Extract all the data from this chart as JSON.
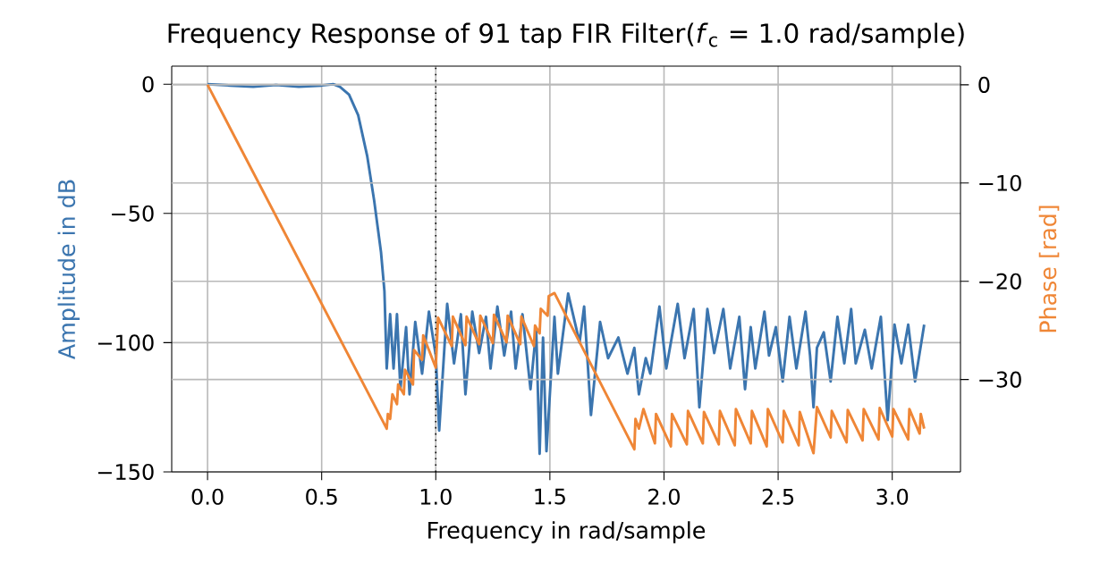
{
  "chart_data": {
    "type": "line",
    "title": "Frequency Response of 91 tap FIR Filter(*f*$_{c}$ = 1.0 rad/sample)",
    "xlabel": "Frequency in rad/sample",
    "ylabel": "Amplitude in dB",
    "y2label": "Phase [rad]",
    "xlim": [
      -0.157,
      3.299
    ],
    "ylim": [
      -150,
      7
    ],
    "y2lim": [
      -39.4,
      1.9
    ],
    "xticks": [
      {
        "value": 0,
        "label": "0.0"
      },
      {
        "value": 0.5,
        "label": "0.5"
      },
      {
        "value": 1.0,
        "label": "1.0"
      },
      {
        "value": 1.5,
        "label": "1.5"
      },
      {
        "value": 2.0,
        "label": "2.0"
      },
      {
        "value": 2.5,
        "label": "2.5"
      },
      {
        "value": 3.0,
        "label": "3.0"
      }
    ],
    "yticks": [
      {
        "value": 0,
        "label": "0"
      },
      {
        "value": -50,
        "label": "−50"
      },
      {
        "value": -100,
        "label": "−100"
      },
      {
        "value": -150,
        "label": "−150"
      }
    ],
    "y2ticks": [
      {
        "value": 0,
        "label": "0"
      },
      {
        "value": -10,
        "label": "−10"
      },
      {
        "value": -20,
        "label": "−20"
      },
      {
        "value": -30,
        "label": "−30"
      }
    ],
    "grid": true,
    "ref_lines": [
      {
        "axis": "x",
        "value": 1.0,
        "color": "#000000",
        "line_style": "dotted"
      }
    ],
    "series": [
      {
        "color": "#3b75af",
        "x": [
          0,
          0.1,
          0.2,
          0.3,
          0.4,
          0.5,
          0.55,
          0.58,
          0.62,
          0.66,
          0.7,
          0.73,
          0.76,
          0.775,
          0.785,
          0.8,
          0.815,
          0.83,
          0.845,
          0.87,
          0.885,
          0.91,
          0.94,
          0.97,
          1.0,
          1.015,
          1.05,
          1.08,
          1.11,
          1.13,
          1.16,
          1.19,
          1.22,
          1.24,
          1.27,
          1.3,
          1.33,
          1.35,
          1.38,
          1.415,
          1.44,
          1.455,
          1.47,
          1.485,
          1.52,
          1.535,
          1.58,
          1.63,
          1.65,
          1.68,
          1.72,
          1.755,
          1.8,
          1.84,
          1.87,
          1.89,
          1.92,
          1.94,
          1.98,
          2.01,
          2.06,
          2.09,
          2.13,
          2.155,
          2.19,
          2.22,
          2.26,
          2.29,
          2.33,
          2.355,
          2.38,
          2.4,
          2.44,
          2.46,
          2.49,
          2.52,
          2.55,
          2.58,
          2.62,
          2.64,
          2.655,
          2.67,
          2.7,
          2.73,
          2.76,
          2.79,
          2.82,
          2.84,
          2.88,
          2.91,
          2.95,
          2.98,
          3.01,
          3.04,
          3.07,
          3.1,
          3.14
        ],
        "values": [
          0,
          -0.5,
          -1,
          -0.3,
          -1,
          -0.5,
          0,
          -1,
          -4,
          -12,
          -28,
          -45,
          -65,
          -80,
          -110,
          -89,
          -110,
          -89,
          -118,
          -94,
          -120,
          -92,
          -112,
          -88,
          -105,
          -134,
          -85,
          -108,
          -89,
          -120,
          -88,
          -104,
          -90,
          -110,
          -86,
          -105,
          -88,
          -110,
          -89,
          -118,
          -95,
          -143,
          -98,
          -142,
          -90,
          -112,
          -81,
          -100,
          -86,
          -128,
          -92,
          -106,
          -98,
          -112,
          -102,
          -120,
          -106,
          -112,
          -86,
          -110,
          -85,
          -106,
          -87,
          -125,
          -87,
          -104,
          -87,
          -110,
          -90,
          -118,
          -94,
          -110,
          -88,
          -105,
          -94,
          -115,
          -90,
          -110,
          -88,
          -105,
          -125,
          -102,
          -96,
          -115,
          -90,
          -108,
          -87,
          -108,
          -95,
          -110,
          -90,
          -130,
          -93,
          -108,
          -93,
          -115,
          -93
        ]
      },
      {
        "color": "#ef8636",
        "axis": "y2",
        "x": [
          0,
          0.785,
          0.79,
          0.8,
          0.81,
          0.83,
          0.835,
          0.86,
          0.865,
          0.9,
          0.905,
          0.94,
          0.945,
          1.0,
          1.01,
          1.07,
          1.075,
          1.13,
          1.135,
          1.19,
          1.195,
          1.25,
          1.255,
          1.31,
          1.315,
          1.37,
          1.375,
          1.43,
          1.435,
          1.455,
          1.46,
          1.49,
          1.495,
          1.52,
          1.87,
          1.875,
          1.89,
          1.91,
          1.96,
          1.965,
          2.03,
          2.035,
          2.1,
          2.105,
          2.17,
          2.175,
          2.24,
          2.245,
          2.31,
          2.315,
          2.38,
          2.385,
          2.45,
          2.455,
          2.52,
          2.525,
          2.59,
          2.595,
          2.655,
          2.67,
          2.73,
          2.735,
          2.8,
          2.805,
          2.87,
          2.875,
          2.94,
          2.945,
          3.0,
          3.005,
          3.07,
          3.075,
          3.12,
          3.125,
          3.14
        ],
        "values": [
          0,
          -35.0,
          -33.5,
          -34,
          -31.5,
          -32.5,
          -30.5,
          -31.5,
          -29,
          -30.5,
          -27,
          -28,
          -25.5,
          -28.8,
          -23.7,
          -26.6,
          -23.6,
          -26.5,
          -23.6,
          -26.4,
          -23.5,
          -26.3,
          -23.4,
          -26.2,
          -23.5,
          -26.4,
          -23.6,
          -26.6,
          -24.5,
          -25.3,
          -22.8,
          -23.5,
          -21.5,
          -21.2,
          -37.1,
          -34,
          -35,
          -33,
          -36.5,
          -33.5,
          -36.8,
          -33.5,
          -36.6,
          -33.2,
          -36.5,
          -33.3,
          -36.6,
          -33.2,
          -36.7,
          -33.0,
          -36.5,
          -33.2,
          -36.8,
          -33.0,
          -36.4,
          -33.2,
          -36.7,
          -33.3,
          -37.5,
          -32.8,
          -35.9,
          -33.2,
          -36.4,
          -33.1,
          -36.2,
          -33.0,
          -36.1,
          -32.9,
          -35.8,
          -33.0,
          -36.1,
          -33.0,
          -35.5,
          -33.5,
          -35
        ]
      }
    ]
  }
}
